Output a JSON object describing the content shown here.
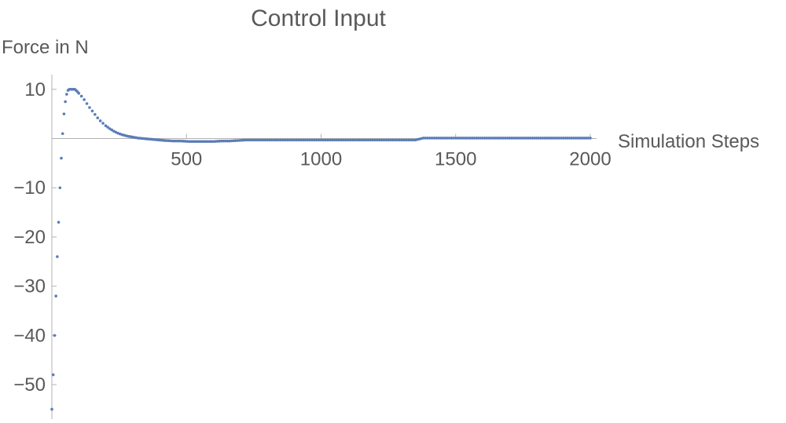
{
  "chart_data": {
    "type": "scatter",
    "title": "Control Input",
    "xlabel": "Simulation Steps",
    "ylabel": "Force in N",
    "xlim": [
      0,
      2000
    ],
    "ylim": [
      -57,
      13
    ],
    "x_ticks": [
      500,
      1000,
      1500,
      2000
    ],
    "y_ticks": [
      10,
      -10,
      -20,
      -30,
      -40,
      -50
    ],
    "x_tick_labels": [
      "500",
      "1000",
      "1500",
      "2000"
    ],
    "y_tick_labels": [
      "10",
      "−10",
      "−20",
      "−30",
      "−40",
      "−50"
    ],
    "grid": false,
    "marker_color": "#5b7db8",
    "axis_color": "#b3b3b3",
    "text_color": "#595959",
    "series": [
      {
        "x": [
          0,
          5,
          10,
          15,
          20,
          25,
          30,
          35,
          40,
          45,
          50,
          55,
          60,
          65,
          70,
          75,
          80,
          85,
          90,
          95,
          100,
          110,
          120,
          130,
          140,
          150,
          160,
          170,
          180,
          190,
          200,
          215,
          230,
          245,
          260,
          280,
          300,
          320,
          340,
          360,
          380,
          400,
          420,
          450,
          480,
          510,
          540,
          570,
          600,
          630,
          660,
          690,
          720,
          760,
          800,
          850,
          900,
          950,
          1000,
          1050,
          1100,
          1150,
          1200,
          1250,
          1300,
          1350,
          1380,
          1420,
          1500,
          1600,
          1700,
          1800,
          1900,
          2000
        ],
        "y": [
          -55,
          -48,
          -40,
          -32,
          -24,
          -17,
          -10,
          -4,
          1,
          5,
          7.5,
          9,
          9.8,
          10,
          10,
          10,
          10,
          10,
          9.8,
          9.5,
          9.2,
          8.6,
          7.9,
          7.1,
          6.3,
          5.6,
          4.9,
          4.2,
          3.6,
          3.1,
          2.6,
          2.0,
          1.5,
          1.1,
          0.8,
          0.5,
          0.3,
          0.1,
          0,
          -0.1,
          -0.2,
          -0.3,
          -0.4,
          -0.5,
          -0.5,
          -0.6,
          -0.6,
          -0.6,
          -0.6,
          -0.5,
          -0.5,
          -0.4,
          -0.3,
          -0.3,
          -0.3,
          -0.3,
          -0.3,
          -0.3,
          -0.3,
          -0.3,
          -0.3,
          -0.3,
          -0.3,
          -0.3,
          -0.3,
          -0.3,
          0.1,
          0.1,
          0.1,
          0.1,
          0.1,
          0.1,
          0.1,
          0.1
        ]
      }
    ]
  }
}
